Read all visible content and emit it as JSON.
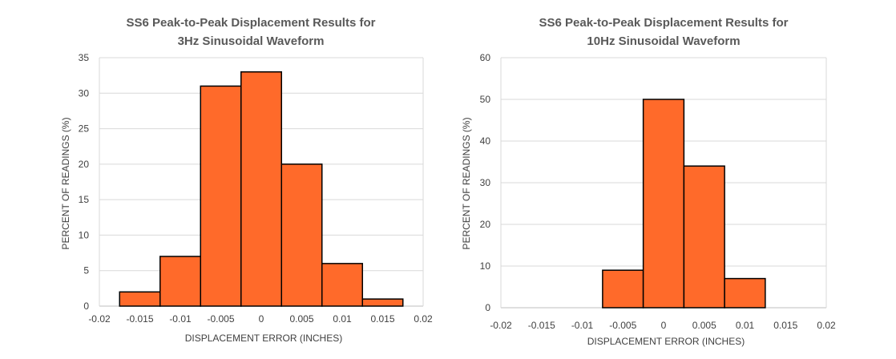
{
  "chart_data": [
    {
      "type": "bar",
      "title_line1": "SS6 Peak-to-Peak Displacement Results for",
      "title_line2": "3Hz Sinusoidal Waveform",
      "xlabel": "DISPLACEMENT ERROR (INCHES)",
      "ylabel": "PERCENT OF READINGS (%)",
      "xlim": [
        -0.02,
        0.02
      ],
      "ylim": [
        0,
        35
      ],
      "y_ticks": [
        0,
        5,
        10,
        15,
        20,
        25,
        30,
        35
      ],
      "x_ticks": [
        -0.02,
        -0.015,
        -0.01,
        -0.005,
        0,
        0.005,
        0.01,
        0.015,
        0.02
      ],
      "x_tick_labels": [
        "-0.02",
        "-0.015",
        "-0.01",
        "-0.005",
        "0",
        "0.005",
        "0.01",
        "0.015",
        "0.02"
      ],
      "bin_width": 0.005,
      "bin_centers": [
        -0.015,
        -0.01,
        -0.005,
        0,
        0.005,
        0.01,
        0.015
      ],
      "values": [
        2,
        7,
        31,
        33,
        20,
        6,
        1
      ],
      "grid": true,
      "bar_color": "#ff6a2a"
    },
    {
      "type": "bar",
      "title_line1": "SS6 Peak-to-Peak Displacement Results for",
      "title_line2": "10Hz Sinusoidal Waveform",
      "xlabel": "DISPLACEMENT ERROR (INCHES)",
      "ylabel": "PERCENT OF READINGS (%)",
      "xlim": [
        -0.02,
        0.02
      ],
      "ylim": [
        0,
        60
      ],
      "y_ticks": [
        0,
        10,
        20,
        30,
        40,
        50,
        60
      ],
      "x_ticks": [
        -0.02,
        -0.015,
        -0.01,
        -0.005,
        0,
        0.005,
        0.01,
        0.015,
        0.02
      ],
      "x_tick_labels": [
        "-0.02",
        "-0.015",
        "-0.01",
        "-0.005",
        "0",
        "0.005",
        "0.01",
        "0.015",
        "0.02"
      ],
      "bin_width": 0.005,
      "bin_centers": [
        -0.005,
        0,
        0.005,
        0.01
      ],
      "values": [
        9,
        50,
        34,
        7
      ],
      "grid": true,
      "bar_color": "#ff6a2a"
    }
  ]
}
